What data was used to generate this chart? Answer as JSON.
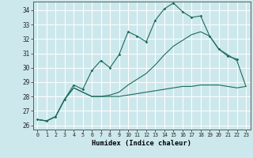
{
  "xlabel": "Humidex (Indice chaleur)",
  "bg_color": "#cde8ec",
  "grid_color": "#ffffff",
  "line_color": "#1a6b5a",
  "xlim": [
    -0.5,
    23.5
  ],
  "ylim": [
    25.7,
    34.6
  ],
  "yticks": [
    26,
    27,
    28,
    29,
    30,
    31,
    32,
    33,
    34
  ],
  "xticks": [
    0,
    1,
    2,
    3,
    4,
    5,
    6,
    7,
    8,
    9,
    10,
    11,
    12,
    13,
    14,
    15,
    16,
    17,
    18,
    19,
    20,
    21,
    22,
    23
  ],
  "x": [
    0,
    1,
    2,
    3,
    4,
    5,
    6,
    7,
    8,
    9,
    10,
    11,
    12,
    13,
    14,
    15,
    16,
    17,
    18,
    19,
    20,
    21,
    22,
    23
  ],
  "line1": [
    26.4,
    26.3,
    26.6,
    27.8,
    28.8,
    28.5,
    29.8,
    30.5,
    30.0,
    30.9,
    32.5,
    32.2,
    31.8,
    33.3,
    34.1,
    34.5,
    33.9,
    33.5,
    33.6,
    32.2,
    31.3,
    30.8,
    30.6,
    null
  ],
  "line2": [
    26.4,
    26.3,
    26.6,
    27.8,
    28.6,
    28.3,
    28.0,
    28.0,
    28.0,
    28.0,
    28.1,
    28.2,
    28.3,
    28.4,
    28.5,
    28.6,
    28.7,
    28.7,
    28.8,
    28.8,
    28.8,
    28.7,
    28.6,
    28.7
  ],
  "line3": [
    26.4,
    26.3,
    26.6,
    27.8,
    28.6,
    28.3,
    28.0,
    28.0,
    28.1,
    28.3,
    28.8,
    29.2,
    29.6,
    30.2,
    30.9,
    31.5,
    31.9,
    32.3,
    32.5,
    32.2,
    31.3,
    30.9,
    30.5,
    28.7
  ]
}
